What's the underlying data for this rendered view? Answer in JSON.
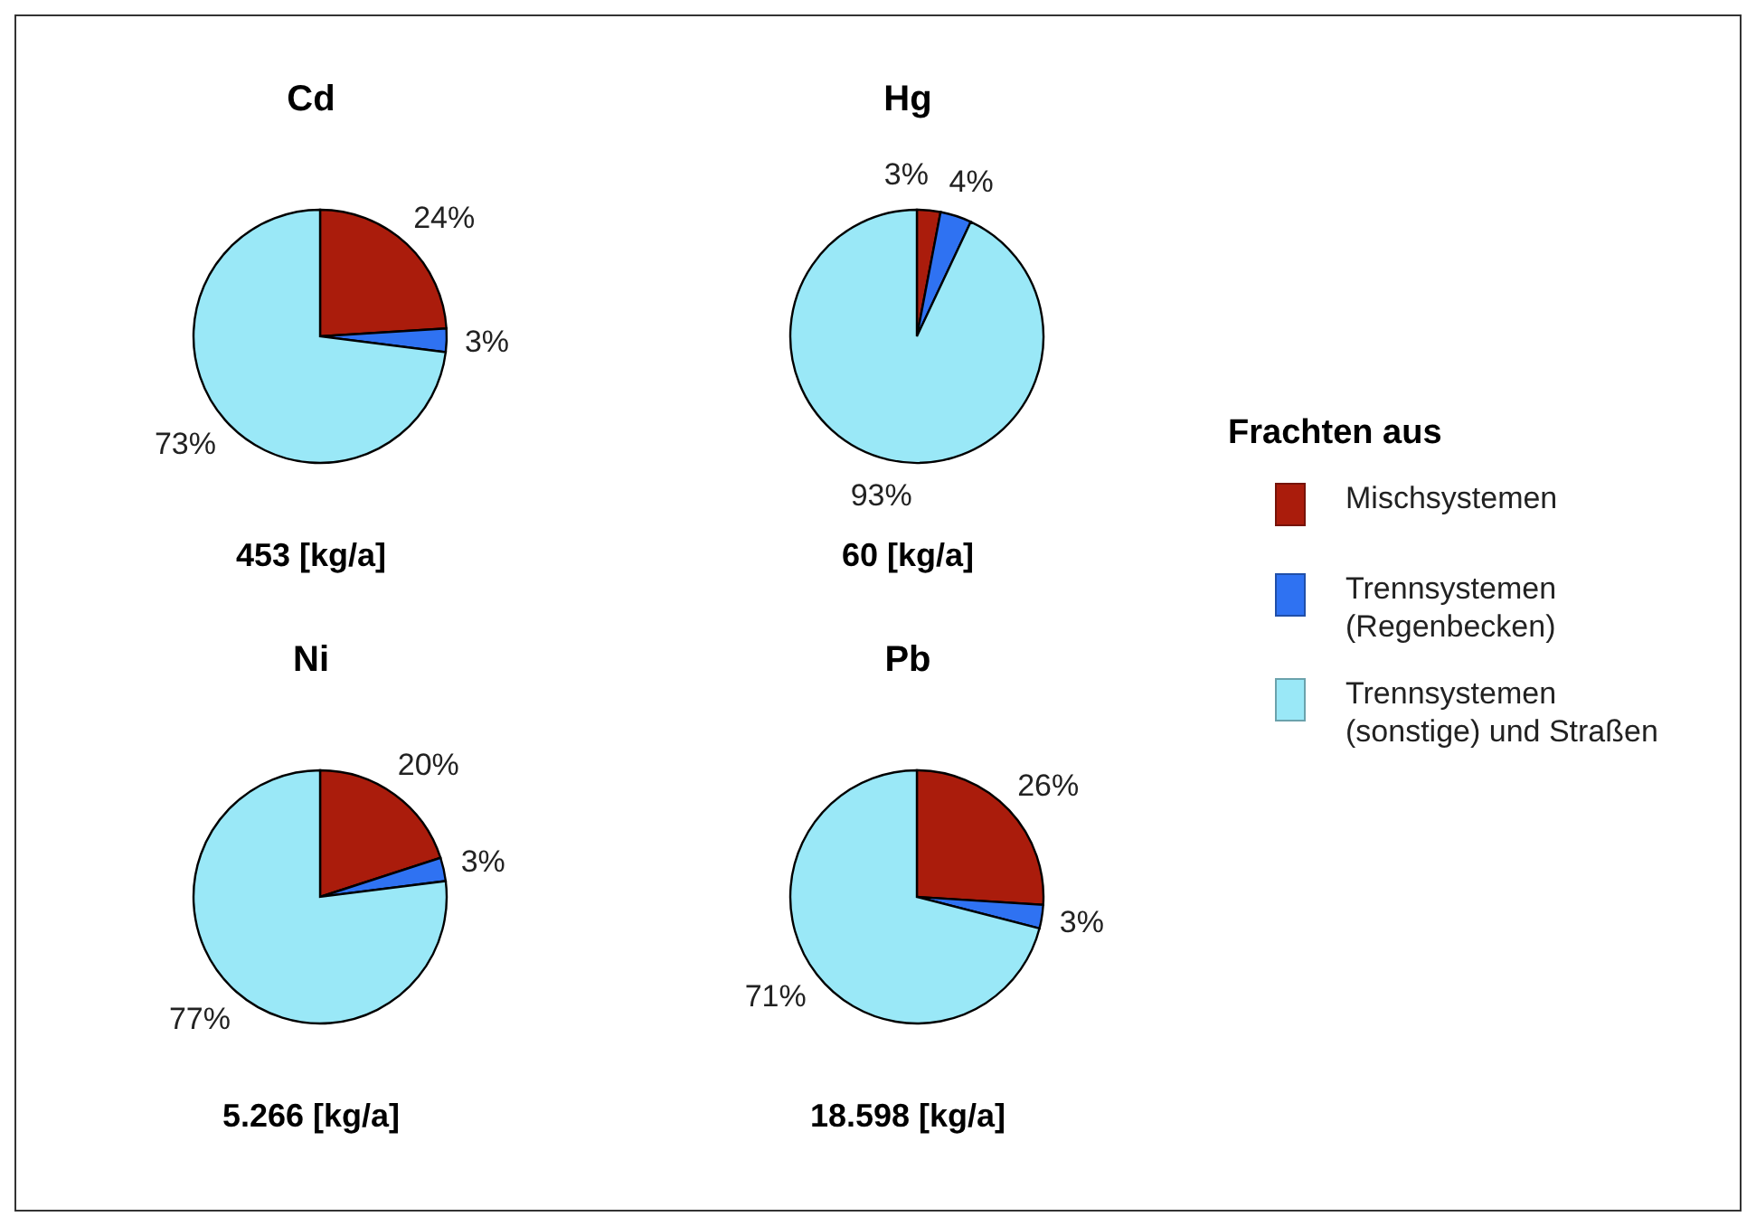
{
  "chart_data": [
    {
      "type": "pie",
      "title": "Cd",
      "annotations": [
        "453 [kg/a]"
      ],
      "categories": [
        "Mischsystemen",
        "Trennsystemen (Regenbecken)",
        "Trennsystemen (sonstige) und Straßen"
      ],
      "values": [
        24,
        3,
        73
      ],
      "value_labels": [
        "24%",
        "3%",
        "73%"
      ],
      "colors": [
        "#aa1c0c",
        "#2f72f2",
        "#9ae8f7"
      ],
      "legend": "right",
      "legend_title": "Frachten aus"
    },
    {
      "type": "pie",
      "title": "Hg",
      "annotations": [
        "60 [kg/a]"
      ],
      "categories": [
        null,
        null,
        null
      ],
      "values": [
        3,
        4,
        93
      ],
      "value_labels": [
        "3%",
        "4%",
        "93%"
      ],
      "colors": [
        "#aa1c0c",
        "#2f72f2",
        "#9ae8f7"
      ]
    },
    {
      "type": "pie",
      "title": "Ni",
      "annotations": [
        "5.266 [kg/a]"
      ],
      "categories": [
        null,
        null,
        null
      ],
      "values": [
        20,
        3,
        77
      ],
      "value_labels": [
        "20%",
        "3%",
        "77%"
      ],
      "colors": [
        "#aa1c0c",
        "#2f72f2",
        "#9ae8f7"
      ]
    },
    {
      "type": "pie",
      "title": "Pb",
      "annotations": [
        "18.598 [kg/a]"
      ],
      "categories": [
        null,
        null,
        null
      ],
      "values": [
        26,
        3,
        71
      ],
      "value_labels": [
        "26%",
        "3%",
        "71%"
      ],
      "colors": [
        "#aa1c0c",
        "#2f72f2",
        "#9ae8f7"
      ]
    }
  ]
}
